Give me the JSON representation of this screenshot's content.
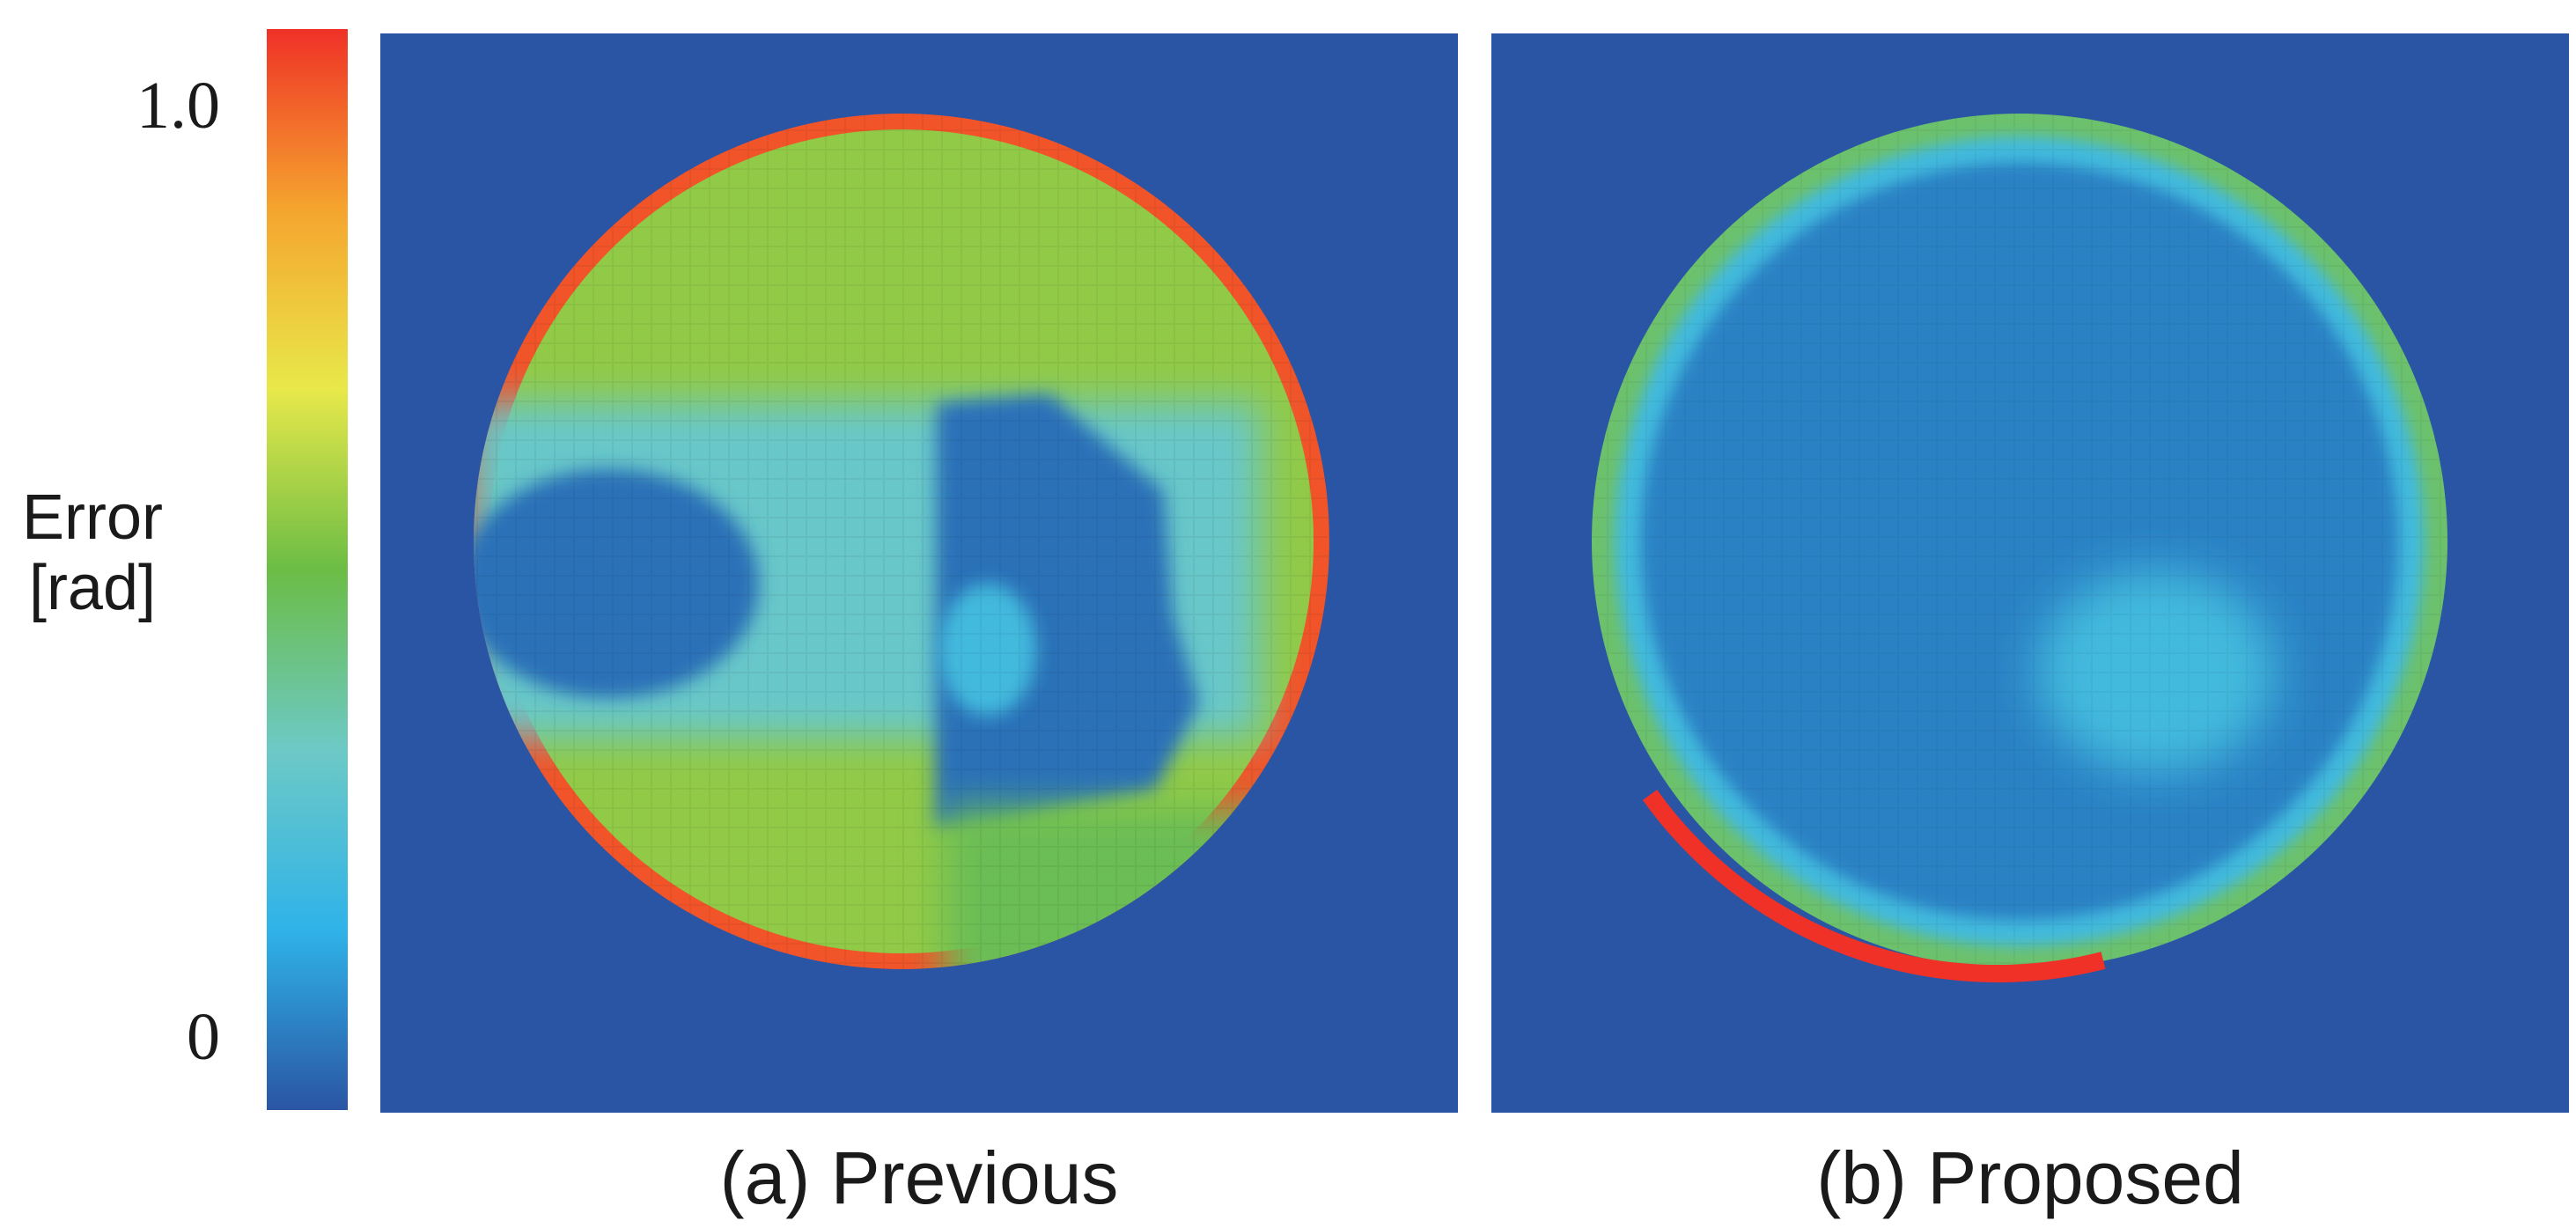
{
  "chart_data": [
    {
      "type": "heatmap",
      "colorbar": {
        "label": [
          "Error",
          "[rad]"
        ],
        "ticks": [
          "1.0",
          "0"
        ],
        "range": [
          0,
          1.0
        ],
        "colormap": [
          "#2a55a4",
          "#2fb3e8",
          "#6dc9c6",
          "#6bbd45",
          "#e8e84a",
          "#f5a52e",
          "#ef3127"
        ]
      },
      "panels": [
        {
          "caption": "(a) Previous",
          "background_value": 0.0,
          "circle": {
            "rim_value": 0.95,
            "interior_value": 0.55
          },
          "regions": [
            {
              "name": "left-dark-blob",
              "value": 0.05
            },
            {
              "name": "center-light-band",
              "value": 0.32
            },
            {
              "name": "right-dark-blob",
              "value": 0.05
            },
            {
              "name": "small-bright-spot",
              "value": 0.22
            },
            {
              "name": "lower-right-transition",
              "value": 0.48
            }
          ]
        },
        {
          "caption": "(b) Proposed",
          "background_value": 0.0,
          "circle": {
            "rim_value": 0.45,
            "inner_ring_value": 0.22,
            "interior_value": 0.08
          },
          "regions": [
            {
              "name": "lower-right-hotspot",
              "value": 0.22
            },
            {
              "name": "lower-left-red-arc",
              "value": 1.0
            }
          ]
        }
      ]
    }
  ]
}
